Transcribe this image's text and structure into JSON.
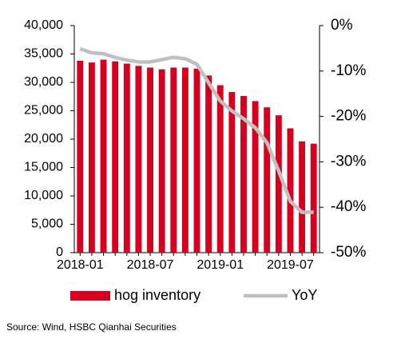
{
  "chart_data": {
    "type": "bar_line",
    "categories": [
      "2018-01",
      null,
      null,
      null,
      null,
      null,
      "2018-07",
      null,
      null,
      null,
      null,
      null,
      "2019-01",
      null,
      null,
      null,
      null,
      null,
      "2019-07",
      null,
      null
    ],
    "series": [
      {
        "name": "hog inventory",
        "type": "bar",
        "color": "#d7001e",
        "values": [
          33800,
          33500,
          34000,
          33700,
          33300,
          32900,
          32600,
          32300,
          32600,
          32600,
          32400,
          31200,
          29500,
          28300,
          27600,
          26700,
          25600,
          24200,
          21900,
          19600,
          19200
        ]
      },
      {
        "name": "YoY",
        "type": "line",
        "axis": "y2",
        "color": "#c0c0c0",
        "values": [
          -5.1,
          -6.0,
          -6.2,
          -7.0,
          -7.6,
          -8.0,
          -8.0,
          -7.5,
          -7.0,
          -7.3,
          -8.5,
          -12.6,
          -16.6,
          -18.8,
          -20.5,
          -22.5,
          -25.8,
          -32.0,
          -38.7,
          -41.1,
          -41.1
        ]
      }
    ],
    "ylim": [
      0,
      40000
    ],
    "yticks": [
      0,
      {
        "value": 5000,
        "label": "5,000"
      },
      {
        "value": 10000,
        "label": "10,000"
      },
      {
        "value": 15000,
        "label": "15,000"
      },
      {
        "value": 20000,
        "label": "20,000"
      },
      {
        "value": 25000,
        "label": "25,000"
      },
      {
        "value": 30000,
        "label": "30,000"
      },
      {
        "value": 35000,
        "label": "35,000"
      },
      {
        "value": 40000,
        "label": "40,000"
      }
    ],
    "y2lim": [
      -50,
      0
    ],
    "y2ticks": [
      {
        "value": -50,
        "label": "-50%"
      },
      {
        "value": -40,
        "label": "-40%"
      },
      {
        "value": -30,
        "label": "-30%"
      },
      {
        "value": -20,
        "label": "-20%"
      },
      {
        "value": -10,
        "label": "-10%"
      },
      {
        "value": 0,
        "label": "0%"
      }
    ],
    "legend": "bottom",
    "source": "Source: Wind, HSBC Qianhai Securities"
  }
}
